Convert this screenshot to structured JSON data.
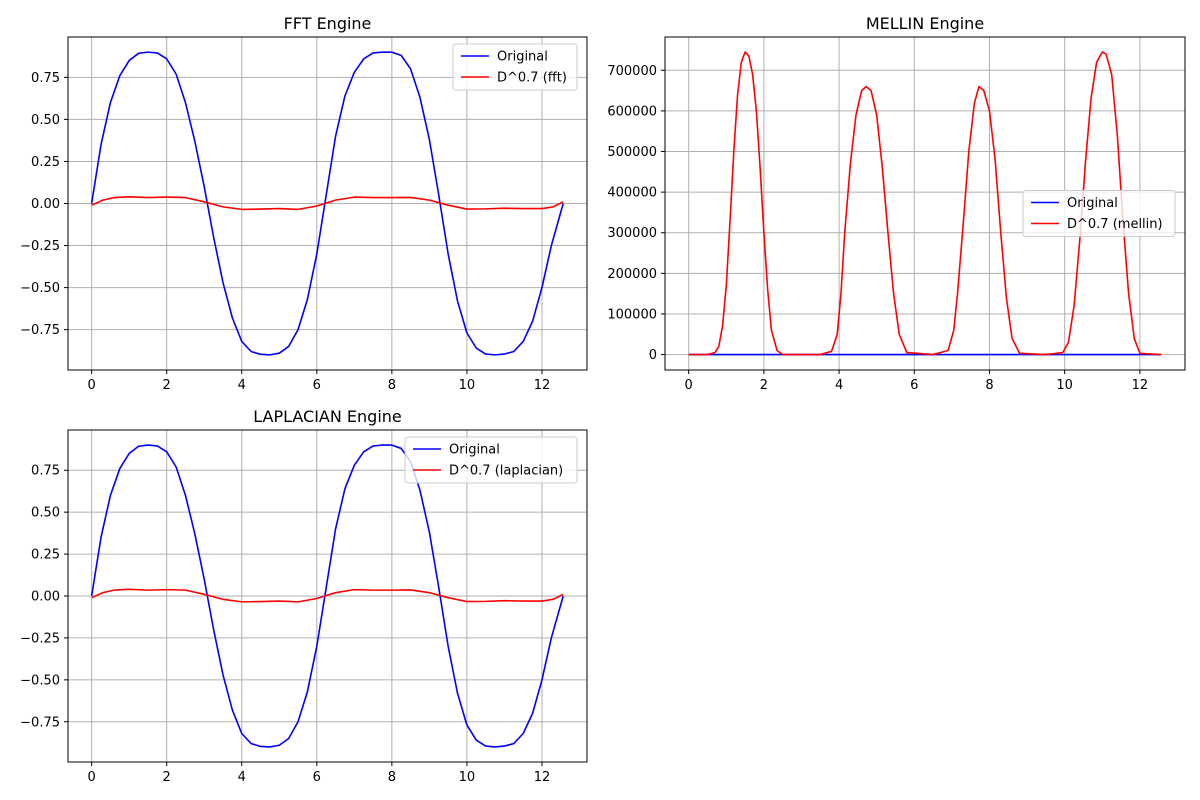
{
  "chart_data": [
    {
      "type": "line",
      "title": "FFT Engine",
      "xlabel": "",
      "ylabel": "",
      "xlim": [
        -0.63,
        13.2
      ],
      "ylim": [
        -0.99,
        0.99
      ],
      "xticks": [
        0,
        2,
        4,
        6,
        8,
        10,
        12
      ],
      "yticks": [
        -0.75,
        -0.5,
        -0.25,
        0.0,
        0.25,
        0.5,
        0.75
      ],
      "ytick_labels": [
        "−0.75",
        "−0.50",
        "−0.25",
        "0.00",
        "0.25",
        "0.50",
        "0.75"
      ],
      "grid": true,
      "legend_position": "upper right",
      "series": [
        {
          "name": "Original",
          "color": "#0000ff",
          "x": [
            0,
            0.25,
            0.5,
            0.75,
            1.0,
            1.25,
            1.5,
            1.75,
            2.0,
            2.25,
            2.5,
            2.75,
            3.0,
            3.25,
            3.5,
            3.75,
            4.0,
            4.25,
            4.5,
            4.75,
            5.0,
            5.25,
            5.5,
            5.75,
            6.0,
            6.25,
            6.5,
            6.75,
            7.0,
            7.25,
            7.5,
            7.75,
            8.0,
            8.25,
            8.5,
            8.75,
            9.0,
            9.25,
            9.5,
            9.75,
            10.0,
            10.25,
            10.5,
            10.75,
            11.0,
            11.25,
            11.5,
            11.75,
            12.0,
            12.25,
            12.566
          ],
          "y": [
            0.0,
            0.35,
            0.6,
            0.76,
            0.85,
            0.893,
            0.9,
            0.895,
            0.86,
            0.77,
            0.6,
            0.37,
            0.1,
            -0.2,
            -0.47,
            -0.68,
            -0.82,
            -0.88,
            -0.897,
            -0.9,
            -0.89,
            -0.85,
            -0.75,
            -0.57,
            -0.3,
            0.05,
            0.4,
            0.64,
            0.78,
            0.86,
            0.895,
            0.9,
            0.9,
            0.88,
            0.8,
            0.63,
            0.38,
            0.05,
            -0.3,
            -0.58,
            -0.77,
            -0.86,
            -0.895,
            -0.9,
            -0.895,
            -0.88,
            -0.82,
            -0.7,
            -0.5,
            -0.25,
            0.0
          ]
        },
        {
          "name": "D^0.7 (fft)",
          "color": "#ff0000",
          "x": [
            0,
            0.3,
            0.6,
            1.0,
            1.5,
            2.0,
            2.5,
            3.0,
            3.5,
            4.0,
            4.5,
            5.0,
            5.5,
            6.0,
            6.5,
            7.0,
            7.5,
            8.0,
            8.5,
            9.0,
            9.5,
            10.0,
            10.5,
            11.0,
            11.5,
            12.0,
            12.3,
            12.566
          ],
          "y": [
            -0.01,
            0.02,
            0.035,
            0.04,
            0.035,
            0.038,
            0.035,
            0.01,
            -0.02,
            -0.035,
            -0.033,
            -0.03,
            -0.035,
            -0.015,
            0.02,
            0.038,
            0.035,
            0.035,
            0.036,
            0.02,
            -0.01,
            -0.033,
            -0.032,
            -0.028,
            -0.03,
            -0.03,
            -0.02,
            0.01
          ]
        }
      ]
    },
    {
      "type": "line",
      "title": "MELLIN Engine",
      "xlabel": "",
      "ylabel": "",
      "xlim": [
        -0.63,
        13.2
      ],
      "ylim": [
        -38000,
        782000
      ],
      "xticks": [
        0,
        2,
        4,
        6,
        8,
        10,
        12
      ],
      "yticks": [
        0,
        100000,
        200000,
        300000,
        400000,
        500000,
        600000,
        700000
      ],
      "ytick_labels": [
        "0",
        "100000",
        "200000",
        "300000",
        "400000",
        "500000",
        "600000",
        "700000"
      ],
      "grid": true,
      "legend_position": "center right",
      "series": [
        {
          "name": "Original",
          "color": "#0000ff",
          "x": [
            0,
            12.566
          ],
          "y": [
            0,
            0
          ]
        },
        {
          "name": "D^0.7 (mellin)",
          "color": "#ff0000",
          "x": [
            0,
            0.5,
            0.7,
            0.8,
            0.9,
            1.0,
            1.1,
            1.2,
            1.3,
            1.4,
            1.5,
            1.6,
            1.7,
            1.8,
            1.9,
            2.0,
            2.1,
            2.2,
            2.35,
            2.5,
            2.7,
            3.5,
            3.8,
            3.95,
            4.05,
            4.15,
            4.3,
            4.45,
            4.6,
            4.72,
            4.85,
            5.0,
            5.15,
            5.3,
            5.45,
            5.6,
            5.8,
            6.5,
            6.9,
            7.05,
            7.15,
            7.3,
            7.45,
            7.6,
            7.72,
            7.85,
            8.0,
            8.15,
            8.3,
            8.45,
            8.6,
            8.8,
            9.5,
            9.95,
            10.1,
            10.25,
            10.4,
            10.55,
            10.7,
            10.85,
            11.0,
            11.1,
            11.25,
            11.4,
            11.55,
            11.7,
            11.85,
            12.0,
            12.566
          ],
          "y": [
            0,
            0,
            5000,
            20000,
            70000,
            170000,
            330000,
            500000,
            640000,
            720000,
            745000,
            735000,
            690000,
            600000,
            460000,
            300000,
            160000,
            60000,
            10000,
            0,
            0,
            0,
            8000,
            50000,
            150000,
            300000,
            470000,
            590000,
            650000,
            660000,
            650000,
            590000,
            460000,
            300000,
            150000,
            50000,
            5000,
            0,
            10000,
            60000,
            150000,
            320000,
            500000,
            620000,
            660000,
            650000,
            600000,
            480000,
            300000,
            140000,
            40000,
            3000,
            0,
            5000,
            30000,
            120000,
            280000,
            470000,
            630000,
            720000,
            745000,
            740000,
            690000,
            540000,
            330000,
            150000,
            40000,
            3000,
            0
          ]
        }
      ]
    },
    {
      "type": "line",
      "title": "LAPLACIAN Engine",
      "xlabel": "",
      "ylabel": "",
      "xlim": [
        -0.63,
        13.2
      ],
      "ylim": [
        -0.99,
        0.99
      ],
      "xticks": [
        0,
        2,
        4,
        6,
        8,
        10,
        12
      ],
      "yticks": [
        -0.75,
        -0.5,
        -0.25,
        0.0,
        0.25,
        0.5,
        0.75
      ],
      "ytick_labels": [
        "−0.75",
        "−0.50",
        "−0.25",
        "0.00",
        "0.25",
        "0.50",
        "0.75"
      ],
      "grid": true,
      "legend_position": "upper right",
      "series": [
        {
          "name": "Original",
          "color": "#0000ff",
          "x": [
            0,
            0.25,
            0.5,
            0.75,
            1.0,
            1.25,
            1.5,
            1.75,
            2.0,
            2.25,
            2.5,
            2.75,
            3.0,
            3.25,
            3.5,
            3.75,
            4.0,
            4.25,
            4.5,
            4.75,
            5.0,
            5.25,
            5.5,
            5.75,
            6.0,
            6.25,
            6.5,
            6.75,
            7.0,
            7.25,
            7.5,
            7.75,
            8.0,
            8.25,
            8.5,
            8.75,
            9.0,
            9.25,
            9.5,
            9.75,
            10.0,
            10.25,
            10.5,
            10.75,
            11.0,
            11.25,
            11.5,
            11.75,
            12.0,
            12.25,
            12.566
          ],
          "y": [
            0.0,
            0.35,
            0.6,
            0.76,
            0.85,
            0.893,
            0.9,
            0.895,
            0.86,
            0.77,
            0.6,
            0.37,
            0.1,
            -0.2,
            -0.47,
            -0.68,
            -0.82,
            -0.88,
            -0.897,
            -0.9,
            -0.89,
            -0.85,
            -0.75,
            -0.57,
            -0.3,
            0.05,
            0.4,
            0.64,
            0.78,
            0.86,
            0.895,
            0.9,
            0.9,
            0.88,
            0.8,
            0.63,
            0.38,
            0.05,
            -0.3,
            -0.58,
            -0.77,
            -0.86,
            -0.895,
            -0.9,
            -0.895,
            -0.88,
            -0.82,
            -0.7,
            -0.5,
            -0.25,
            0.0
          ]
        },
        {
          "name": "D^0.7 (laplacian)",
          "color": "#ff0000",
          "x": [
            0,
            0.3,
            0.6,
            1.0,
            1.5,
            2.0,
            2.5,
            3.0,
            3.5,
            4.0,
            4.5,
            5.0,
            5.5,
            6.0,
            6.5,
            7.0,
            7.5,
            8.0,
            8.5,
            9.0,
            9.5,
            10.0,
            10.5,
            11.0,
            11.5,
            12.0,
            12.3,
            12.566
          ],
          "y": [
            -0.01,
            0.02,
            0.035,
            0.04,
            0.035,
            0.038,
            0.035,
            0.01,
            -0.02,
            -0.035,
            -0.033,
            -0.03,
            -0.035,
            -0.015,
            0.02,
            0.038,
            0.035,
            0.035,
            0.036,
            0.02,
            -0.01,
            -0.033,
            -0.032,
            -0.028,
            -0.03,
            -0.03,
            -0.02,
            0.01
          ]
        }
      ]
    }
  ]
}
